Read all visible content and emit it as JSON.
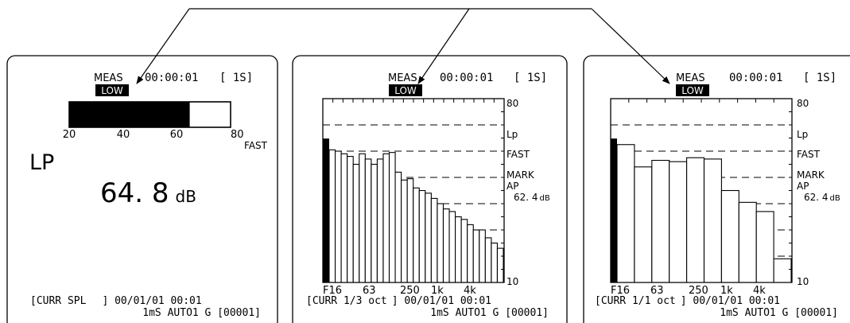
{
  "panels": [
    {
      "meas": "MEAS",
      "time": "00:00:01",
      "interval": "[ 1S]",
      "range": "LOW",
      "bar_value": 64.8,
      "bar_scale": [
        "20",
        "40",
        "60",
        "80"
      ],
      "bar_scale_range": [
        20,
        80
      ],
      "weighting": "FAST",
      "quantity": "LP",
      "value": "64. 8",
      "unit": "dB",
      "footer_line1_left": "[CURR SPL",
      "footer_line1_right": "] 00/01/01 00:01",
      "footer_line2": "1mS AUTO1 G [00001]"
    },
    {
      "meas": "MEAS",
      "time": "00:00:01",
      "interval": "[ 1S]",
      "range": "LOW",
      "side_labels": [
        "Lp",
        "FAST",
        "MARK",
        "AP"
      ],
      "side_value": "62. 4",
      "side_unit": "dB",
      "footer_line1_left": "[CURR 1/3 oct",
      "footer_line1_right": "] 00/01/01 00:01",
      "footer_line2": "1mS AUTO1 G [00001]"
    },
    {
      "meas": "MEAS",
      "time": "00:00:01",
      "interval": "[ 1S]",
      "range": "LOW",
      "side_labels": [
        "Lp",
        "FAST",
        "MARK",
        "AP"
      ],
      "side_value": "62. 4",
      "side_unit": "dB",
      "footer_line1_left": "[CURR 1/1 oct",
      "footer_line1_right": "] 00/01/01 00:01",
      "footer_line2": "1mS AUTO1 G [00001]"
    }
  ],
  "chart_data": [
    {
      "type": "bar",
      "ylim": [
        10,
        80
      ],
      "y_ticks": [
        "80",
        "10"
      ],
      "x_ticks": [
        "F16",
        "63",
        "250",
        "1k",
        "4k"
      ],
      "overall_bar": 64.8,
      "values": [
        60.5,
        60,
        59,
        58,
        55,
        59,
        57,
        55,
        57,
        59,
        59.5,
        52,
        49,
        49.5,
        46,
        45,
        44,
        42,
        40,
        38,
        37,
        35,
        34,
        32,
        30,
        30,
        27,
        25,
        23
      ]
    },
    {
      "type": "bar",
      "ylim": [
        10,
        80
      ],
      "y_ticks": [
        "80",
        "10"
      ],
      "x_ticks": [
        "F16",
        "63",
        "250",
        "1k",
        "4k"
      ],
      "overall_bar": 64.8,
      "values": [
        62.5,
        54,
        56.5,
        56,
        57.5,
        57,
        45,
        40.5,
        37,
        19
      ]
    }
  ]
}
